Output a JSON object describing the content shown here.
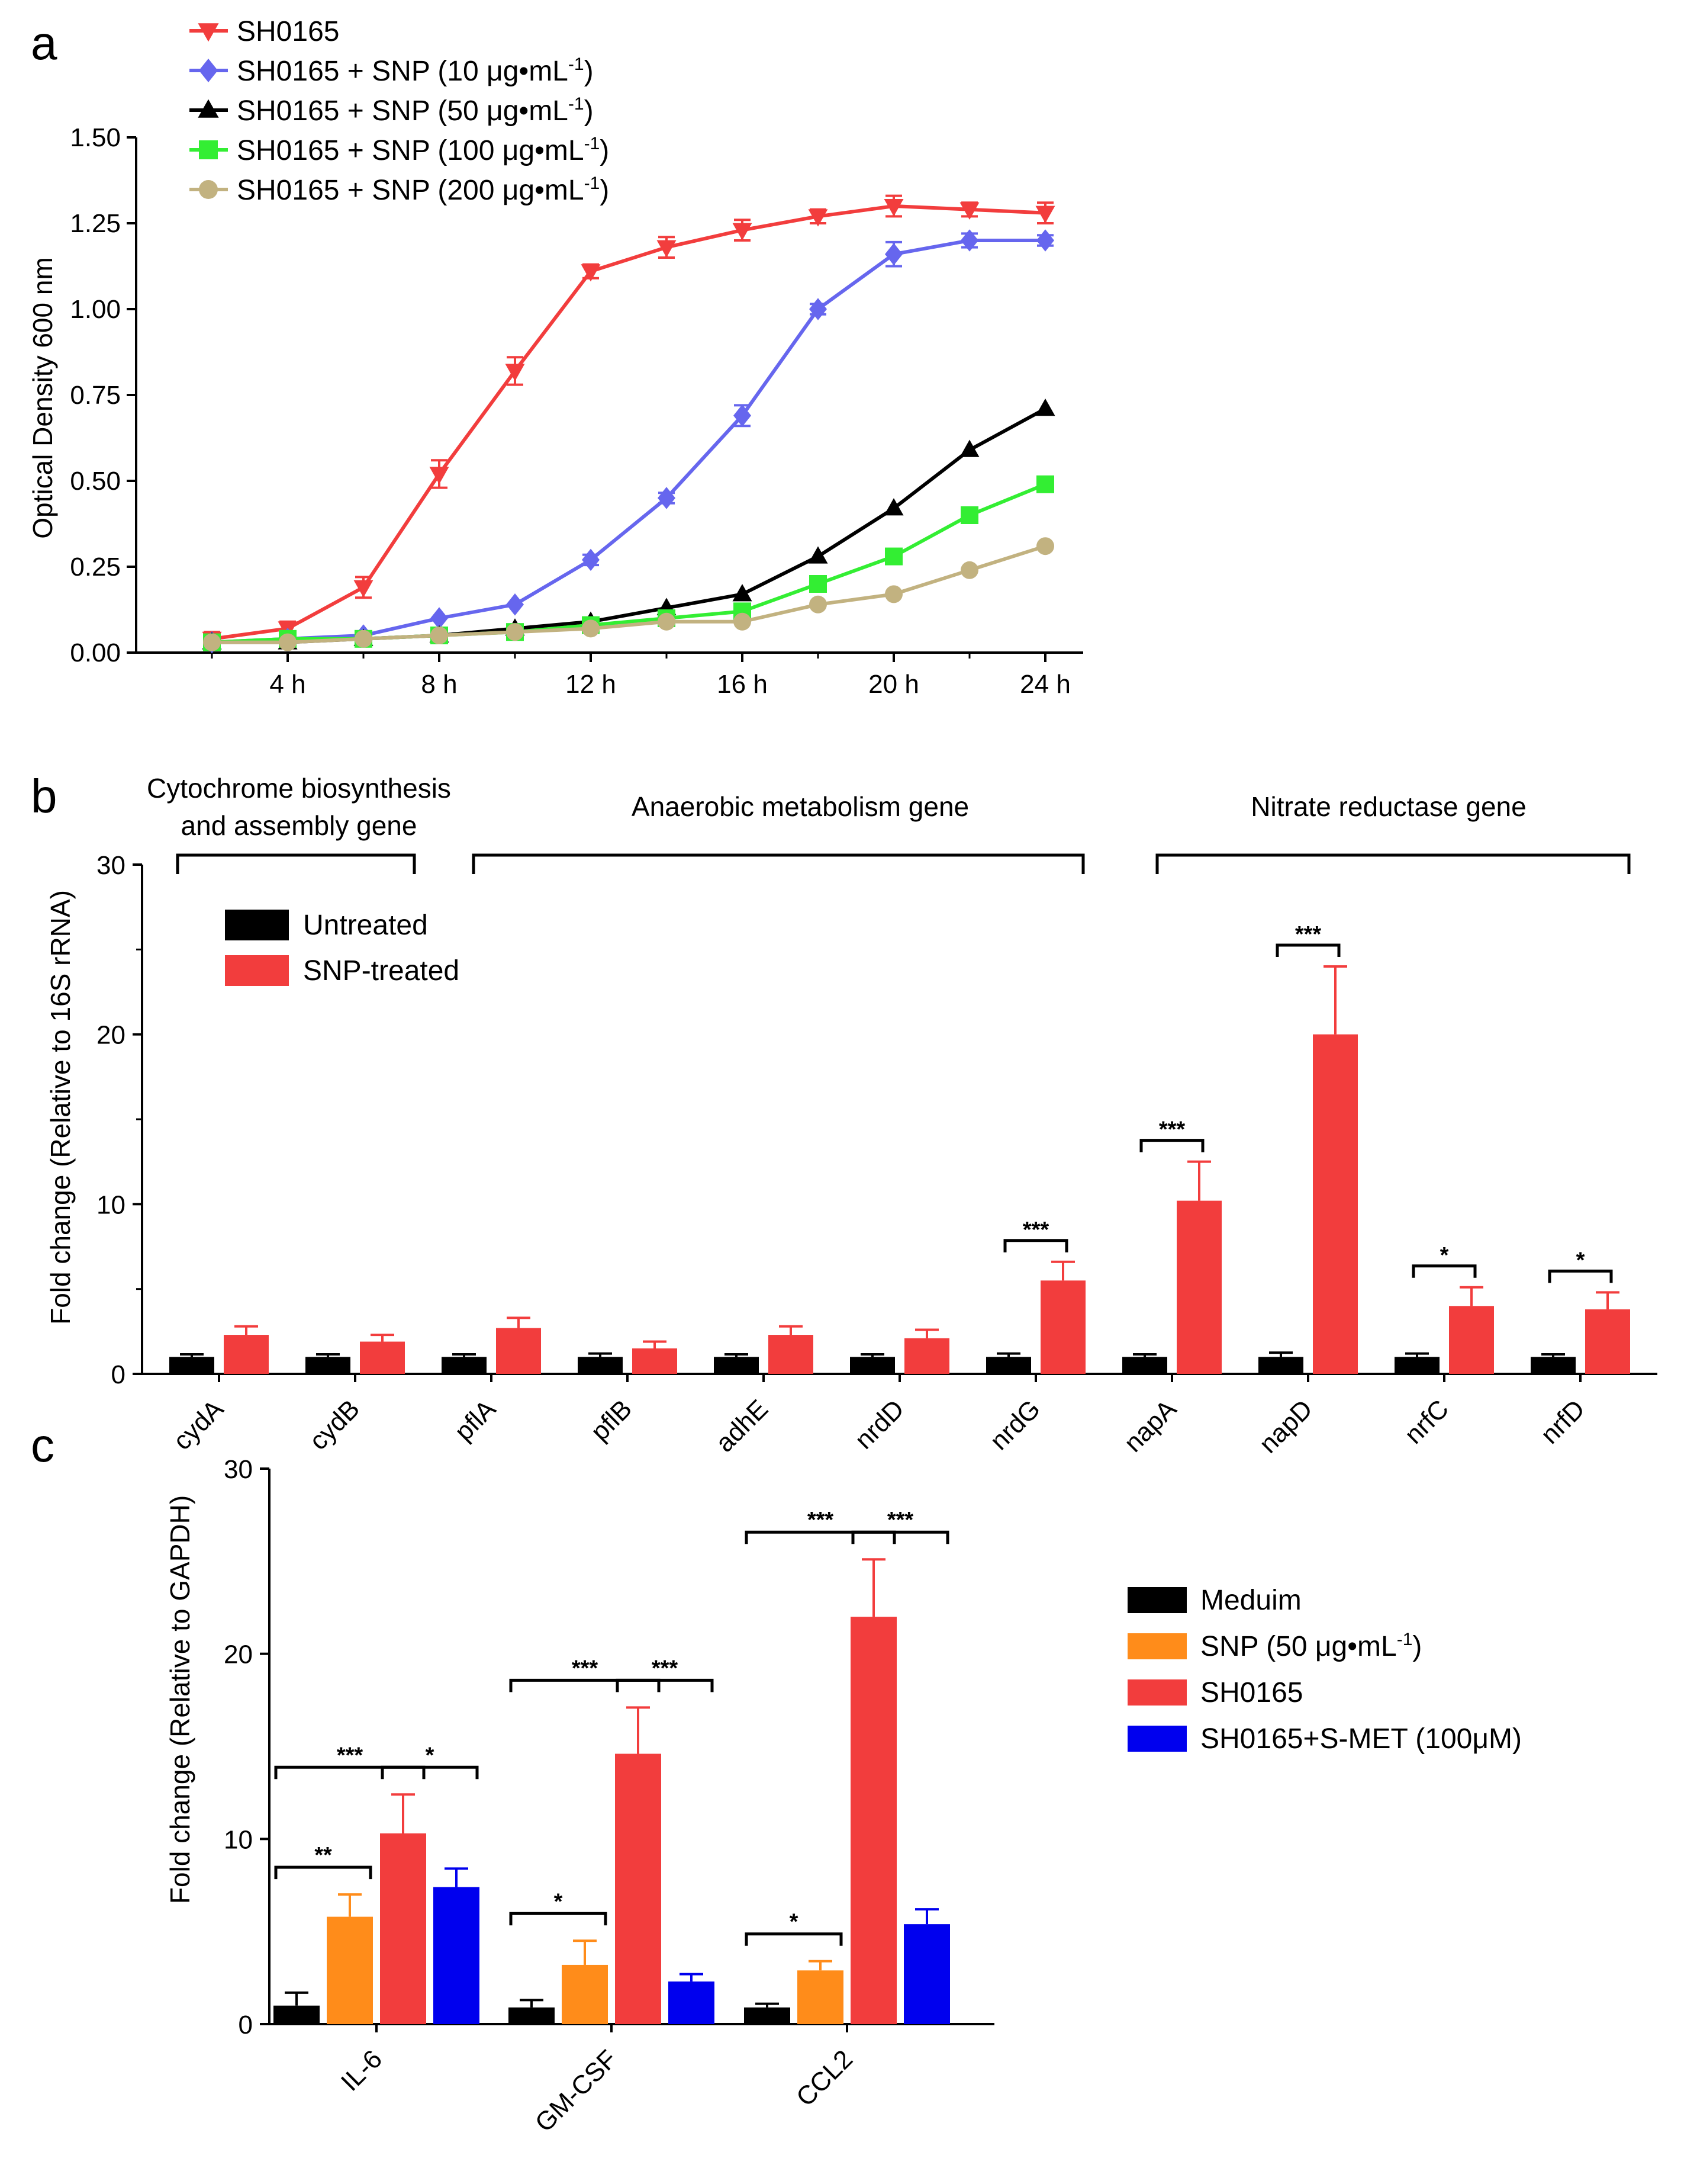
{
  "panel_a": {
    "letter": "a",
    "ylabel": "Optical Density 600 nm",
    "legend": [
      {
        "name": "SH0165",
        "pre": "SH0165",
        "sup": "",
        "post": ""
      },
      {
        "name": "SH0165 + SNP (10 μg•mL⁻¹)",
        "pre": "SH0165 + SNP (10 μg•mL",
        "sup": "-1",
        "post": ")"
      },
      {
        "name": "SH0165 + SNP (50 μg•mL⁻¹)",
        "pre": "SH0165 + SNP (50 μg•mL",
        "sup": "-1",
        "post": ")"
      },
      {
        "name": "SH0165 + SNP (100 μg•mL⁻¹)",
        "pre": "SH0165 + SNP (100 μg•mL",
        "sup": "-1",
        "post": ")"
      },
      {
        "name": "SH0165 + SNP (200 μg•mL⁻¹)",
        "pre": "SH0165 + SNP (200 μg•mL",
        "sup": "-1",
        "post": ")"
      }
    ]
  },
  "panel_b": {
    "letter": "b",
    "ylabel": "Fold change (Relative to 16S rRNA)",
    "legend": [
      "Untreated",
      "SNP-treated"
    ],
    "groups": [
      {
        "lines": [
          "Cytochrome biosynthesis",
          "and assembly gene"
        ]
      },
      {
        "lines": [
          "Anaerobic metabolism gene"
        ]
      },
      {
        "lines": [
          "Nitrate reductase gene"
        ]
      }
    ]
  },
  "panel_c": {
    "letter": "c",
    "ylabel": "Fold change (Relative to GAPDH)",
    "legend": [
      {
        "pre": "Meduim",
        "sup": "",
        "post": ""
      },
      {
        "pre": "SNP (50 μg•mL",
        "sup": "-1",
        "post": ")"
      },
      {
        "pre": "SH0165",
        "sup": "",
        "post": ""
      },
      {
        "pre": "SH0165+S-MET (100μM)",
        "sup": "",
        "post": ""
      }
    ]
  },
  "chart_data": [
    {
      "type": "line",
      "title": "",
      "xlabel": "",
      "ylabel": "Optical Density 600 nm",
      "x": [
        2,
        4,
        6,
        8,
        10,
        12,
        14,
        16,
        18,
        20,
        22,
        24
      ],
      "xticks": [
        4,
        8,
        12,
        16,
        20,
        24
      ],
      "xtick_labels": [
        "4 h",
        "8 h",
        "12 h",
        "16 h",
        "20 h",
        "24 h"
      ],
      "xlim": [
        0,
        25
      ],
      "yticks": [
        0.0,
        0.25,
        0.5,
        0.75,
        1.0,
        1.25,
        1.5
      ],
      "ytick_labels": [
        "0.00",
        "0.25",
        "0.50",
        "0.75",
        "1.00",
        "1.25",
        "1.50"
      ],
      "ylim": [
        0,
        1.5
      ],
      "legend_position": "top-left",
      "series": [
        {
          "name": "SH0165",
          "color": "#f23d3d",
          "marker": "triangle-down",
          "values": [
            0.04,
            0.07,
            0.19,
            0.52,
            0.82,
            1.11,
            1.18,
            1.23,
            1.27,
            1.3,
            1.29,
            1.28
          ],
          "errors": [
            0.02,
            0.02,
            0.03,
            0.04,
            0.04,
            0.02,
            0.03,
            0.03,
            0.02,
            0.03,
            0.02,
            0.03
          ]
        },
        {
          "name": "SH0165 + SNP (10 μg•mL⁻¹)",
          "color": "#6666ee",
          "marker": "diamond",
          "values": [
            0.03,
            0.04,
            0.05,
            0.1,
            0.14,
            0.27,
            0.45,
            0.69,
            1.0,
            1.16,
            1.2,
            1.2
          ],
          "errors": [
            0.005,
            0.005,
            0.005,
            0.01,
            0.01,
            0.015,
            0.015,
            0.03,
            0.015,
            0.035,
            0.02,
            0.015
          ]
        },
        {
          "name": "SH0165 + SNP (50 μg•mL⁻¹)",
          "color": "#000000",
          "marker": "triangle-up",
          "values": [
            0.03,
            0.03,
            0.04,
            0.05,
            0.07,
            0.09,
            0.13,
            0.17,
            0.28,
            0.42,
            0.59,
            0.71
          ],
          "errors": [
            0.005,
            0.005,
            0.005,
            0.005,
            0.005,
            0.005,
            0.008,
            0.01,
            0.01,
            0.01,
            0.01,
            0.01
          ]
        },
        {
          "name": "SH0165 + SNP (100 μg•mL⁻¹)",
          "color": "#33ee33",
          "marker": "square",
          "values": [
            0.03,
            0.04,
            0.04,
            0.05,
            0.06,
            0.08,
            0.1,
            0.12,
            0.2,
            0.28,
            0.4,
            0.49
          ],
          "errors": [
            0.005,
            0.005,
            0.005,
            0.005,
            0.005,
            0.005,
            0.008,
            0.01,
            0.01,
            0.01,
            0.01,
            0.01
          ]
        },
        {
          "name": "SH0165 + SNP (200 μg•mL⁻¹)",
          "color": "#c2b280",
          "marker": "circle",
          "values": [
            0.03,
            0.03,
            0.04,
            0.05,
            0.06,
            0.07,
            0.09,
            0.09,
            0.14,
            0.17,
            0.24,
            0.31
          ],
          "errors": [
            0.005,
            0.005,
            0.005,
            0.005,
            0.005,
            0.005,
            0.005,
            0.008,
            0.008,
            0.008,
            0.01,
            0.01
          ]
        }
      ]
    },
    {
      "type": "bar",
      "title": "",
      "xlabel": "",
      "ylabel": "Fold change (Relative to 16S rRNA)",
      "categories": [
        "cydA",
        "cydB",
        "pflA",
        "pflB",
        "adhE",
        "nrdD",
        "nrdG",
        "napA",
        "napD",
        "nrfC",
        "nrfD"
      ],
      "ylim": [
        0,
        30
      ],
      "yticks": [
        0,
        10,
        20,
        30
      ],
      "legend_position": "top-left",
      "series": [
        {
          "name": "Untreated",
          "color": "#000000",
          "values": [
            1,
            1,
            1,
            1,
            1,
            1,
            1,
            1,
            1,
            1,
            1
          ],
          "errors": [
            0.15,
            0.15,
            0.15,
            0.2,
            0.15,
            0.15,
            0.2,
            0.15,
            0.25,
            0.2,
            0.15
          ]
        },
        {
          "name": "SNP-treated",
          "color": "#f23d3d",
          "values": [
            2.3,
            1.9,
            2.7,
            1.5,
            2.3,
            2.1,
            5.5,
            10.2,
            20.0,
            4.0,
            3.8
          ],
          "errors": [
            0.5,
            0.4,
            0.6,
            0.4,
            0.5,
            0.5,
            1.1,
            2.3,
            4.0,
            1.1,
            1.0
          ]
        }
      ],
      "significance": [
        {
          "category": "nrdG",
          "label": "***"
        },
        {
          "category": "napA",
          "label": "***"
        },
        {
          "category": "napD",
          "label": "***"
        },
        {
          "category": "nrfC",
          "label": "*"
        },
        {
          "category": "nrfD",
          "label": "*"
        }
      ]
    },
    {
      "type": "bar",
      "title": "",
      "xlabel": "",
      "ylabel": "Fold change (Relative to GAPDH)",
      "categories": [
        "IL-6",
        "GM-CSF",
        "CCL2"
      ],
      "ylim": [
        0,
        30
      ],
      "yticks": [
        0,
        10,
        20,
        30
      ],
      "legend_position": "right",
      "series": [
        {
          "name": "Meduim",
          "color": "#000000",
          "values": [
            1.0,
            0.9,
            0.9
          ],
          "errors": [
            0.7,
            0.4,
            0.2
          ]
        },
        {
          "name": "SNP (50 μg•mL⁻¹)",
          "color": "#ff8c1a",
          "values": [
            5.8,
            3.2,
            2.9
          ],
          "errors": [
            1.2,
            1.3,
            0.5
          ]
        },
        {
          "name": "SH0165",
          "color": "#f23d3d",
          "values": [
            10.3,
            14.6,
            22.0
          ],
          "errors": [
            2.1,
            2.5,
            3.1
          ]
        },
        {
          "name": "SH0165+S-MET (100μM)",
          "color": "#0000ee",
          "values": [
            7.4,
            2.3,
            5.4
          ],
          "errors": [
            1.0,
            0.4,
            0.8
          ]
        }
      ],
      "significance": [
        {
          "category": "IL-6",
          "from": "Meduim",
          "to": "SNP (50 μg•mL⁻¹)",
          "label": "**"
        },
        {
          "category": "IL-6",
          "from": "Meduim",
          "to": "SH0165",
          "label": "***"
        },
        {
          "category": "IL-6",
          "from": "SH0165",
          "to": "SH0165+S-MET (100μM)",
          "label": "*"
        },
        {
          "category": "GM-CSF",
          "from": "Meduim",
          "to": "SNP (50 μg•mL⁻¹)",
          "label": "*"
        },
        {
          "category": "GM-CSF",
          "from": "Meduim",
          "to": "SH0165",
          "label": "***"
        },
        {
          "category": "GM-CSF",
          "from": "SH0165",
          "to": "SH0165+S-MET (100μM)",
          "label": "***"
        },
        {
          "category": "CCL2",
          "from": "Meduim",
          "to": "SNP (50 μg•mL⁻¹)",
          "label": "*"
        },
        {
          "category": "CCL2",
          "from": "Meduim",
          "to": "SH0165",
          "label": "***"
        },
        {
          "category": "CCL2",
          "from": "SH0165",
          "to": "SH0165+S-MET (100μM)",
          "label": "***"
        }
      ]
    }
  ]
}
